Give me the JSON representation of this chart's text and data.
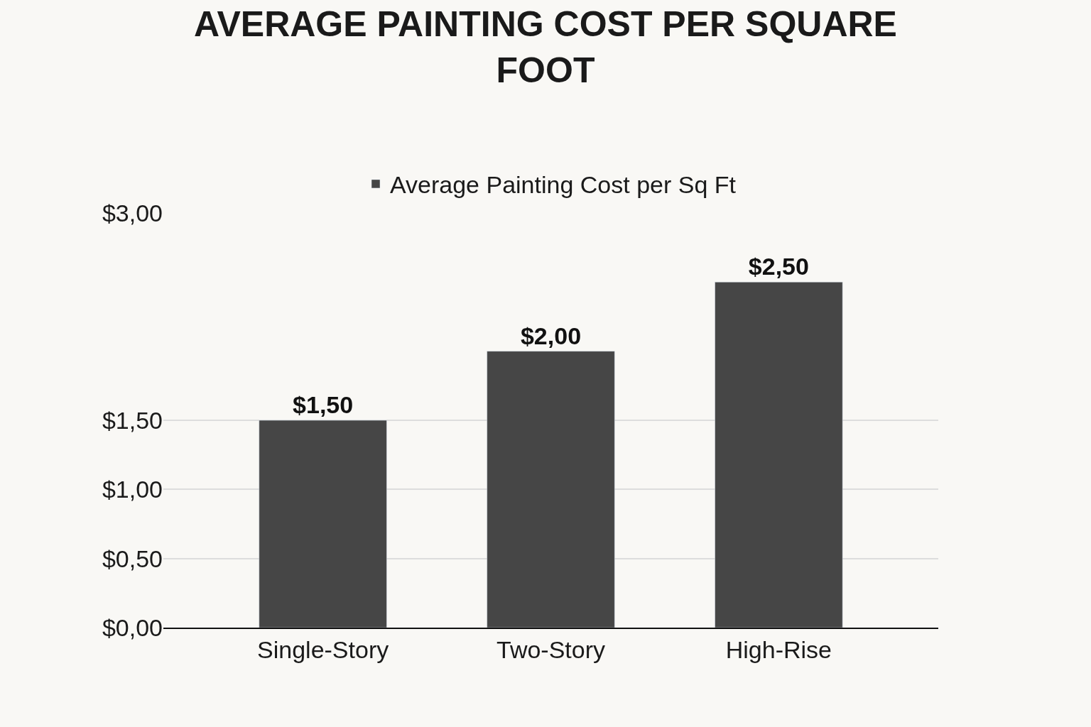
{
  "chart_data": {
    "type": "bar",
    "title": "AVERAGE PAINTING COST PER SQUARE FOOT",
    "categories": [
      "Single-Story",
      "Two-Story",
      "High-Rise"
    ],
    "series": [
      {
        "name": "Average Painting Cost per Sq Ft",
        "color": "#464646",
        "values": [
          1.5,
          2.0,
          2.5
        ],
        "value_labels": [
          "$1,50",
          "$2,00",
          "$2,50"
        ]
      }
    ],
    "ylim": [
      0,
      3
    ],
    "yticks": [
      {
        "value": 0,
        "label": "$0,00"
      },
      {
        "value": 0.5,
        "label": "$0,50"
      },
      {
        "value": 1,
        "label": "$1,00"
      },
      {
        "value": 1.5,
        "label": "$1,50"
      },
      {
        "value": 3,
        "label": "$3,00"
      }
    ],
    "grid": "y",
    "legend": "top"
  }
}
